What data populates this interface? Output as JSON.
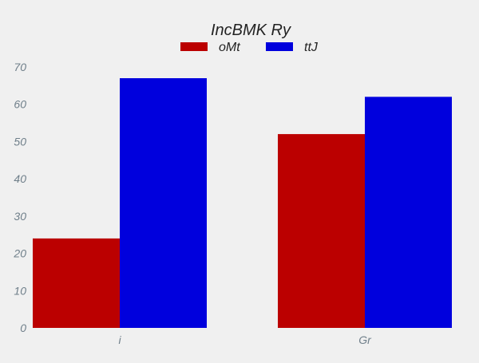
{
  "chart_data": {
    "type": "bar",
    "title": "IncBMK  Ry",
    "categories": [
      "i",
      "Gr"
    ],
    "series": [
      {
        "name": "oMt",
        "color": "#bb0000",
        "values": [
          24,
          52
        ]
      },
      {
        "name": "ttJ",
        "color": "#0000dd",
        "values": [
          67,
          62
        ]
      }
    ],
    "ylim": [
      0,
      70
    ],
    "yticks": [
      0,
      10,
      20,
      30,
      40,
      50,
      60,
      70
    ],
    "xlabel": "",
    "ylabel": "",
    "grid": false,
    "legend_position": "top-center"
  }
}
